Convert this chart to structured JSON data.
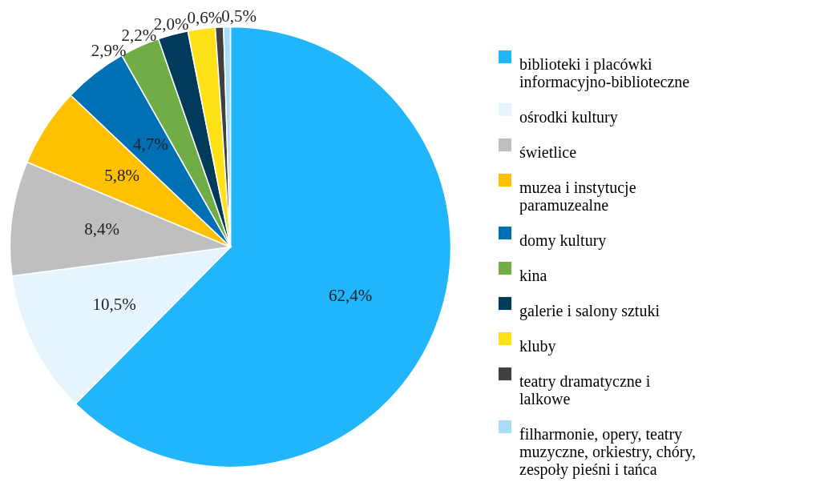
{
  "chart_data": {
    "type": "pie",
    "categories": [
      "biblioteki i placówki informacyjno-biblioteczne",
      "ośrodki kultury",
      "świetlice",
      "muzea i instytucje paramuzealne",
      "domy kultury",
      "kina",
      "galerie i salony sztuki",
      "kluby",
      "teatry dramatyczne i lalkowe",
      "filharmonie, opery, teatry muzyczne, orkiestry, chóry, zespoły pieśni i tańca"
    ],
    "values": [
      62.4,
      10.5,
      8.4,
      5.8,
      4.7,
      2.9,
      2.2,
      2.0,
      0.6,
      0.5
    ],
    "value_labels": [
      "62,4%",
      "10,5%",
      "8,4%",
      "5,8%",
      "4,7%",
      "2,9%",
      "2,2%",
      "2,0%",
      "0,6%",
      "0,5%"
    ],
    "colors": [
      "#21b5fb",
      "#e6f5fd",
      "#bfbfbf",
      "#ffc000",
      "#0070b5",
      "#70ad47",
      "#003b5c",
      "#ffe11a",
      "#404040",
      "#a9dcf7"
    ],
    "legend": "right"
  }
}
